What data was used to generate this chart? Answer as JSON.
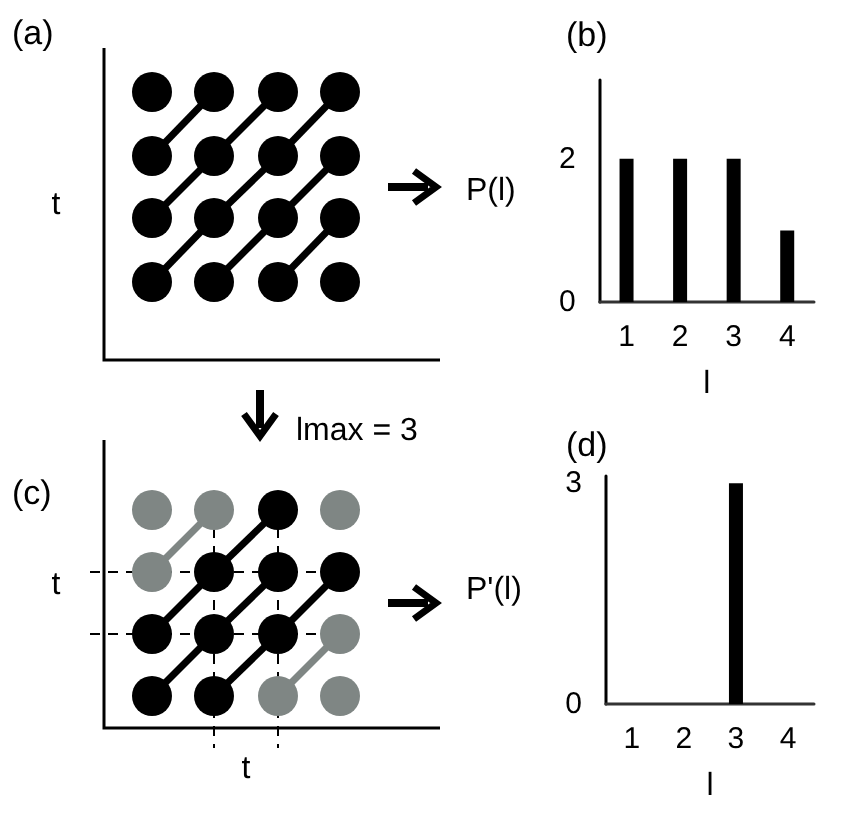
{
  "chart_data": [
    {
      "type": "other",
      "title": "(a)",
      "ylabel": "t"
    },
    {
      "type": "bar",
      "title": "(b)",
      "categories": [
        "1",
        "2",
        "3",
        "4"
      ],
      "values": [
        2,
        2,
        2,
        1
      ],
      "color": "#000000",
      "xlabel": "l",
      "ylabel": "P(l)",
      "ylim": [
        0,
        3.1
      ],
      "yticks": [
        0,
        2
      ]
    },
    {
      "type": "other",
      "title": "(c)",
      "xlabel": "t",
      "ylabel": "t",
      "annotations": [
        "lmax = 3"
      ]
    },
    {
      "type": "bar",
      "title": "(d)",
      "categories": [
        "1",
        "2",
        "3",
        "4"
      ],
      "values": [
        0,
        0,
        3,
        0
      ],
      "color": "#000000",
      "xlabel": "l",
      "ylabel": "P'(l)",
      "ylim": [
        0,
        3.1
      ],
      "yticks": [
        0,
        3
      ]
    }
  ]
}
